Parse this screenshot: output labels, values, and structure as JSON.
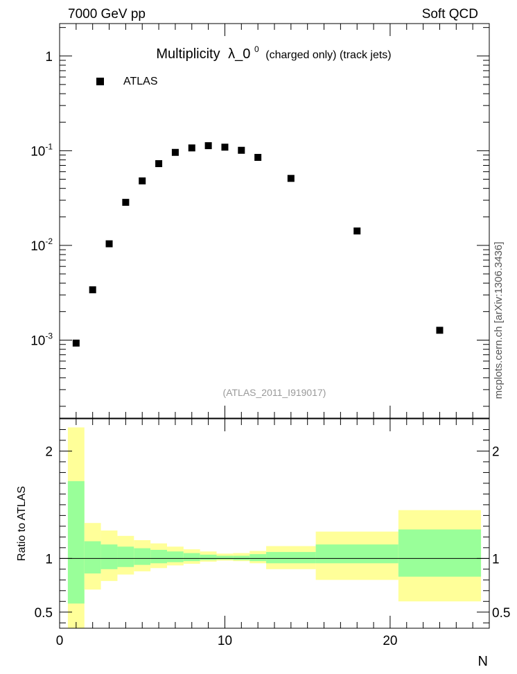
{
  "header": {
    "left": "7000 GeV pp",
    "right": "Soft QCD"
  },
  "chart_data": [
    {
      "type": "scatter",
      "title": "Multiplicity",
      "title_symbol": "λ_0",
      "title_sup": "0",
      "title_suffix": "(charged only) (track jets)",
      "yscale": "log",
      "ylim": [
        0.00015,
        2.2
      ],
      "xlim": [
        0,
        26
      ],
      "legend": {
        "entry": "ATLAS",
        "placement": "top-left"
      },
      "watermark": "(ATLAS_2011_I919017)",
      "side_label": "mcplots.cern.ch [arXiv:1306.3436]",
      "ytick_values": [
        0.001,
        0.01,
        0.1,
        1
      ],
      "yticks": [
        {
          "mant": "10",
          "exp": "-3"
        },
        {
          "mant": "10",
          "exp": "-2"
        },
        {
          "mant": "10",
          "exp": "-1"
        },
        {
          "mant": "1",
          "exp": ""
        }
      ],
      "series": [
        {
          "name": "ATLAS",
          "x": [
            1,
            2,
            3,
            4,
            5,
            6,
            7,
            8,
            9,
            10,
            11,
            12,
            14,
            18,
            23
          ],
          "y": [
            0.00093,
            0.0034,
            0.0104,
            0.0285,
            0.048,
            0.073,
            0.096,
            0.107,
            0.113,
            0.109,
            0.101,
            0.085,
            0.051,
            0.0142,
            0.00127
          ]
        }
      ]
    },
    {
      "type": "area",
      "ylabel": "Ratio to ATLAS",
      "xlabel": "N",
      "ylim": [
        0.35,
        2.3
      ],
      "xlim": [
        0,
        26
      ],
      "xticks": [
        "0",
        "10",
        "20"
      ],
      "xtick_values": [
        0,
        10,
        20
      ],
      "yticks": [
        "0.5",
        "1",
        "2"
      ],
      "ytick_values": [
        0.5,
        1,
        2
      ],
      "reference_line": 1,
      "bands": {
        "bin_edges": [
          0.5,
          1.5,
          2.5,
          3.5,
          4.5,
          5.5,
          6.5,
          7.5,
          8.5,
          9.5,
          10.5,
          11.5,
          12.5,
          15.5,
          20.5,
          25.5
        ],
        "green_low": [
          0.58,
          0.86,
          0.9,
          0.92,
          0.94,
          0.955,
          0.965,
          0.975,
          0.985,
          0.99,
          0.985,
          0.975,
          0.955,
          0.955,
          0.83
        ],
        "green_high": [
          1.72,
          1.16,
          1.13,
          1.11,
          1.095,
          1.08,
          1.065,
          1.05,
          1.035,
          1.025,
          1.025,
          1.04,
          1.06,
          1.13,
          1.27
        ],
        "yellow_low": [
          0.3,
          0.71,
          0.79,
          0.85,
          0.88,
          0.91,
          0.935,
          0.95,
          0.97,
          0.98,
          0.975,
          0.955,
          0.9,
          0.8,
          0.6
        ],
        "yellow_high": [
          2.22,
          1.33,
          1.26,
          1.21,
          1.17,
          1.14,
          1.11,
          1.085,
          1.065,
          1.045,
          1.05,
          1.07,
          1.115,
          1.25,
          1.45
        ]
      },
      "colors": {
        "green": "#99ff99",
        "yellow": "#ffff99",
        "marker": "#000000"
      }
    }
  ]
}
